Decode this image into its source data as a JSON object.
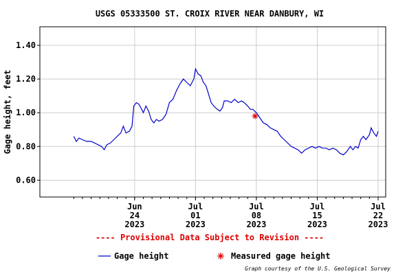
{
  "chart_data": {
    "type": "line",
    "title": "USGS 05333500 ST. CROIX RIVER NEAR DANBURY, WI",
    "xlabel": "",
    "ylabel": "Gage height, feet",
    "x_unit": "days from Jun 17 2023 00:00",
    "ylim": [
      0.5,
      1.51
    ],
    "yticks": [
      0.6,
      0.8,
      1.0,
      1.2,
      1.4
    ],
    "ytick_labels": [
      "0.60",
      "0.80",
      "1.00",
      "1.20",
      "1.40"
    ],
    "xlim": [
      0,
      35
    ],
    "xticks": [
      {
        "x": 7,
        "label": [
          "Jun",
          "24",
          "2023"
        ]
      },
      {
        "x": 14,
        "label": [
          "Jul",
          "01",
          "2023"
        ]
      },
      {
        "x": 21,
        "label": [
          "Jul",
          "08",
          "2023"
        ]
      },
      {
        "x": 28,
        "label": [
          "Jul",
          "15",
          "2023"
        ]
      },
      {
        "x": 35,
        "label": [
          "Jul",
          "22",
          "2023"
        ]
      }
    ],
    "grid": true,
    "series": [
      {
        "name": "Gage height",
        "color": "#0000cc",
        "points": [
          [
            0.0,
            0.86
          ],
          [
            0.3,
            0.83
          ],
          [
            0.6,
            0.85
          ],
          [
            1.0,
            0.84
          ],
          [
            1.5,
            0.83
          ],
          [
            2.0,
            0.83
          ],
          [
            2.4,
            0.82
          ],
          [
            2.8,
            0.81
          ],
          [
            3.2,
            0.8
          ],
          [
            3.5,
            0.78
          ],
          [
            3.8,
            0.81
          ],
          [
            4.2,
            0.82
          ],
          [
            4.6,
            0.84
          ],
          [
            5.0,
            0.86
          ],
          [
            5.4,
            0.88
          ],
          [
            5.7,
            0.92
          ],
          [
            6.0,
            0.88
          ],
          [
            6.4,
            0.89
          ],
          [
            6.7,
            0.92
          ],
          [
            6.9,
            1.04
          ],
          [
            7.2,
            1.06
          ],
          [
            7.5,
            1.05
          ],
          [
            7.8,
            1.02
          ],
          [
            8.0,
            1.0
          ],
          [
            8.3,
            1.04
          ],
          [
            8.6,
            1.01
          ],
          [
            8.9,
            0.96
          ],
          [
            9.2,
            0.94
          ],
          [
            9.5,
            0.96
          ],
          [
            9.8,
            0.95
          ],
          [
            10.2,
            0.96
          ],
          [
            10.6,
            0.99
          ],
          [
            11.0,
            1.06
          ],
          [
            11.4,
            1.08
          ],
          [
            11.8,
            1.13
          ],
          [
            12.2,
            1.17
          ],
          [
            12.6,
            1.2
          ],
          [
            13.0,
            1.18
          ],
          [
            13.4,
            1.16
          ],
          [
            13.8,
            1.2
          ],
          [
            14.0,
            1.26
          ],
          [
            14.3,
            1.23
          ],
          [
            14.6,
            1.22
          ],
          [
            14.9,
            1.18
          ],
          [
            15.2,
            1.16
          ],
          [
            15.5,
            1.11
          ],
          [
            15.8,
            1.06
          ],
          [
            16.1,
            1.04
          ],
          [
            16.5,
            1.02
          ],
          [
            16.8,
            1.01
          ],
          [
            17.1,
            1.03
          ],
          [
            17.3,
            1.07
          ],
          [
            17.7,
            1.07
          ],
          [
            18.1,
            1.06
          ],
          [
            18.5,
            1.08
          ],
          [
            18.9,
            1.06
          ],
          [
            19.3,
            1.07
          ],
          [
            19.6,
            1.06
          ],
          [
            20.0,
            1.04
          ],
          [
            20.3,
            1.02
          ],
          [
            20.6,
            1.02
          ],
          [
            21.0,
            1.0
          ],
          [
            21.4,
            0.97
          ],
          [
            21.8,
            0.94
          ],
          [
            22.2,
            0.93
          ],
          [
            22.6,
            0.91
          ],
          [
            23.0,
            0.9
          ],
          [
            23.4,
            0.89
          ],
          [
            23.8,
            0.86
          ],
          [
            24.2,
            0.84
          ],
          [
            24.6,
            0.82
          ],
          [
            25.0,
            0.8
          ],
          [
            25.4,
            0.79
          ],
          [
            25.8,
            0.78
          ],
          [
            26.2,
            0.76
          ],
          [
            26.6,
            0.78
          ],
          [
            27.0,
            0.79
          ],
          [
            27.4,
            0.8
          ],
          [
            27.8,
            0.79
          ],
          [
            28.2,
            0.8
          ],
          [
            28.6,
            0.79
          ],
          [
            29.0,
            0.79
          ],
          [
            29.4,
            0.78
          ],
          [
            29.8,
            0.79
          ],
          [
            30.2,
            0.78
          ],
          [
            30.6,
            0.76
          ],
          [
            31.0,
            0.75
          ],
          [
            31.4,
            0.77
          ],
          [
            31.8,
            0.8
          ],
          [
            32.1,
            0.78
          ],
          [
            32.4,
            0.8
          ],
          [
            32.7,
            0.79
          ],
          [
            33.0,
            0.84
          ],
          [
            33.3,
            0.86
          ],
          [
            33.6,
            0.84
          ],
          [
            34.0,
            0.87
          ],
          [
            34.2,
            0.91
          ],
          [
            34.5,
            0.88
          ],
          [
            34.8,
            0.86
          ],
          [
            35.0,
            0.89
          ]
        ]
      },
      {
        "name": "Measured gage height",
        "color": "#dd0000",
        "marker": "asterisk",
        "points": [
          [
            20.85,
            0.98
          ]
        ]
      }
    ],
    "legend_position": "bottom"
  },
  "provisional_note": "---- Provisional Data Subject to Revision ----",
  "credit": "Graph courtesy of the U.S. Geological Survey"
}
